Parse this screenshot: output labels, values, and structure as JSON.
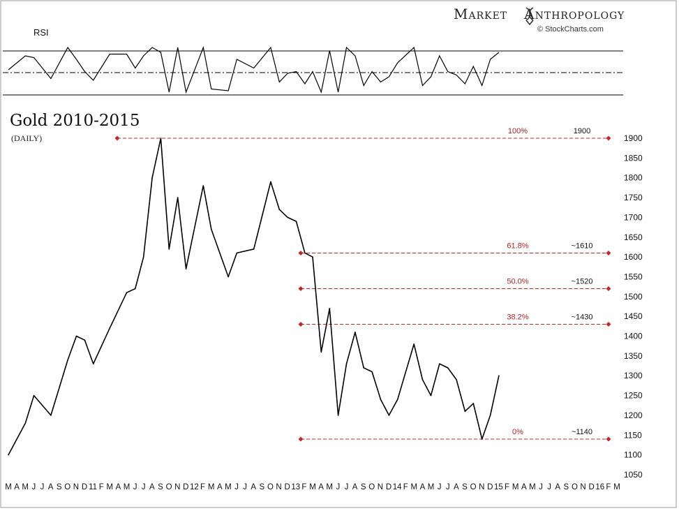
{
  "header": {
    "brand_left": "Market",
    "brand_right": "Anthropology",
    "credit": "© StockCharts.com"
  },
  "rsi_panel": {
    "label": "RSI"
  },
  "colors": {
    "price_line": "#000000",
    "fib_line": "#c0292b",
    "fib_label": "#b22222"
  },
  "chart_data": {
    "type": "line",
    "title": "Gold 2010-2015",
    "subtitle": "(DAILY)",
    "ylim": [
      1050,
      1900
    ],
    "y_ticks": [
      1050,
      1100,
      1150,
      1200,
      1250,
      1300,
      1350,
      1400,
      1450,
      1500,
      1550,
      1600,
      1650,
      1700,
      1750,
      1800,
      1850,
      1900
    ],
    "x_tick_labels": [
      "M",
      "A",
      "M",
      "J",
      "J",
      "A",
      "S",
      "O",
      "N",
      "D",
      "11",
      "F",
      "M",
      "A",
      "M",
      "J",
      "J",
      "A",
      "S",
      "O",
      "N",
      "D",
      "12",
      "F",
      "M",
      "A",
      "M",
      "J",
      "J",
      "A",
      "S",
      "O",
      "N",
      "D",
      "13",
      "F",
      "M",
      "A",
      "M",
      "J",
      "J",
      "A",
      "S",
      "O",
      "N",
      "D",
      "14",
      "F",
      "M",
      "A",
      "M",
      "J",
      "J",
      "A",
      "S",
      "O",
      "N",
      "D",
      "15",
      "F",
      "M",
      "A",
      "M",
      "J",
      "J",
      "A",
      "S",
      "O",
      "N",
      "D",
      "16",
      "F",
      "M"
    ],
    "series": [
      {
        "x": [
          "2010-03",
          "2010-05",
          "2010-06",
          "2010-08",
          "2010-10",
          "2010-11",
          "2010-12",
          "2011-01",
          "2011-03",
          "2011-05",
          "2011-06",
          "2011-07",
          "2011-08",
          "2011-09",
          "2011-10",
          "2011-11",
          "2011-12",
          "2012-02",
          "2012-03",
          "2012-05",
          "2012-06",
          "2012-08",
          "2012-10",
          "2012-11",
          "2012-12",
          "2013-01",
          "2013-02",
          "2013-03",
          "2013-04",
          "2013-05",
          "2013-06",
          "2013-07",
          "2013-08",
          "2013-09",
          "2013-10",
          "2013-11",
          "2013-12",
          "2014-01",
          "2014-03",
          "2014-04",
          "2014-05",
          "2014-06",
          "2014-07",
          "2014-08",
          "2014-09",
          "2014-10",
          "2014-11",
          "2014-12",
          "2015-01"
        ],
        "values": [
          1100,
          1180,
          1250,
          1200,
          1340,
          1400,
          1390,
          1330,
          1420,
          1510,
          1520,
          1600,
          1800,
          1900,
          1620,
          1750,
          1570,
          1780,
          1670,
          1550,
          1610,
          1620,
          1790,
          1720,
          1700,
          1690,
          1610,
          1600,
          1360,
          1470,
          1200,
          1330,
          1410,
          1320,
          1310,
          1240,
          1200,
          1240,
          1380,
          1290,
          1250,
          1330,
          1320,
          1290,
          1210,
          1230,
          1140,
          1200,
          1300
        ]
      }
    ],
    "annotations": [
      {
        "pct": "100%",
        "level": "1900"
      },
      {
        "pct": "61.8%",
        "level": "~1610"
      },
      {
        "pct": "50.0%",
        "level": "~1520"
      },
      {
        "pct": "38.2%",
        "level": "~1430"
      },
      {
        "pct": "0%",
        "level": "~1140"
      }
    ],
    "fib_values": [
      1900,
      1610,
      1520,
      1430,
      1140
    ]
  }
}
